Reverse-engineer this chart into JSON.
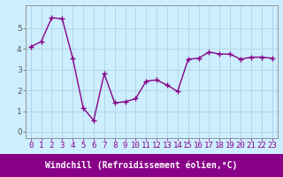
{
  "x": [
    0,
    1,
    2,
    3,
    4,
    5,
    6,
    7,
    8,
    9,
    10,
    11,
    12,
    13,
    14,
    15,
    16,
    17,
    18,
    19,
    20,
    21,
    22,
    23
  ],
  "y": [
    4.1,
    4.35,
    5.5,
    5.45,
    3.55,
    1.15,
    0.55,
    2.8,
    1.4,
    1.45,
    1.6,
    2.45,
    2.5,
    2.25,
    1.95,
    3.5,
    3.55,
    3.85,
    3.75,
    3.75,
    3.5,
    3.6,
    3.6,
    3.55
  ],
  "line_color": "#880088",
  "marker": "+",
  "markersize": 4,
  "linewidth": 1.0,
  "bg_color": "#cceeff",
  "plot_bg_color": "#cceeff",
  "grid_color": "#aaccdd",
  "xlabel": "Windchill (Refroidissement éolien,°C)",
  "xlabel_bg_color": "#880088",
  "xlabel_text_color": "#ffffff",
  "xlabel_fontsize": 7,
  "xtick_labels": [
    "0",
    "1",
    "2",
    "3",
    "4",
    "5",
    "6",
    "7",
    "8",
    "9",
    "10",
    "11",
    "12",
    "13",
    "14",
    "15",
    "16",
    "17",
    "18",
    "19",
    "20",
    "21",
    "22",
    "23"
  ],
  "ytick_values": [
    0,
    1,
    2,
    3,
    4,
    5
  ],
  "ylim": [
    -0.3,
    6.1
  ],
  "xlim": [
    -0.5,
    23.5
  ],
  "tick_fontsize": 6.5,
  "xtick_color": "#880088",
  "ytick_color": "#555555",
  "spine_color": "#888888"
}
